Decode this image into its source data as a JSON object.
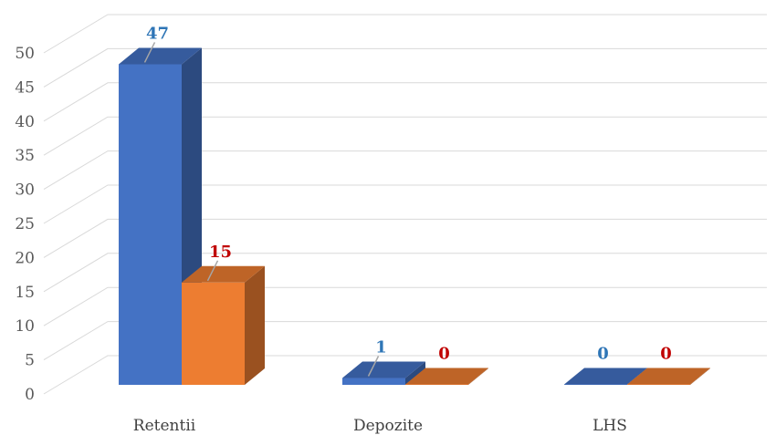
{
  "chart_data": {
    "type": "bar",
    "categories": [
      "Retentii",
      "Depozite",
      "LHS"
    ],
    "series": [
      {
        "values": [
          47,
          1,
          0
        ],
        "color": "#4472C4",
        "label_color": "#2E75B6"
      },
      {
        "values": [
          15,
          0,
          0
        ],
        "color": "#ED7D31",
        "label_color": "#C00000"
      }
    ],
    "yticks": [
      0,
      5,
      10,
      15,
      20,
      25,
      30,
      35,
      40,
      45,
      50
    ],
    "ylim": [
      0,
      50
    ],
    "grid": true,
    "legend": "none",
    "style": "3d-clustered-column"
  }
}
